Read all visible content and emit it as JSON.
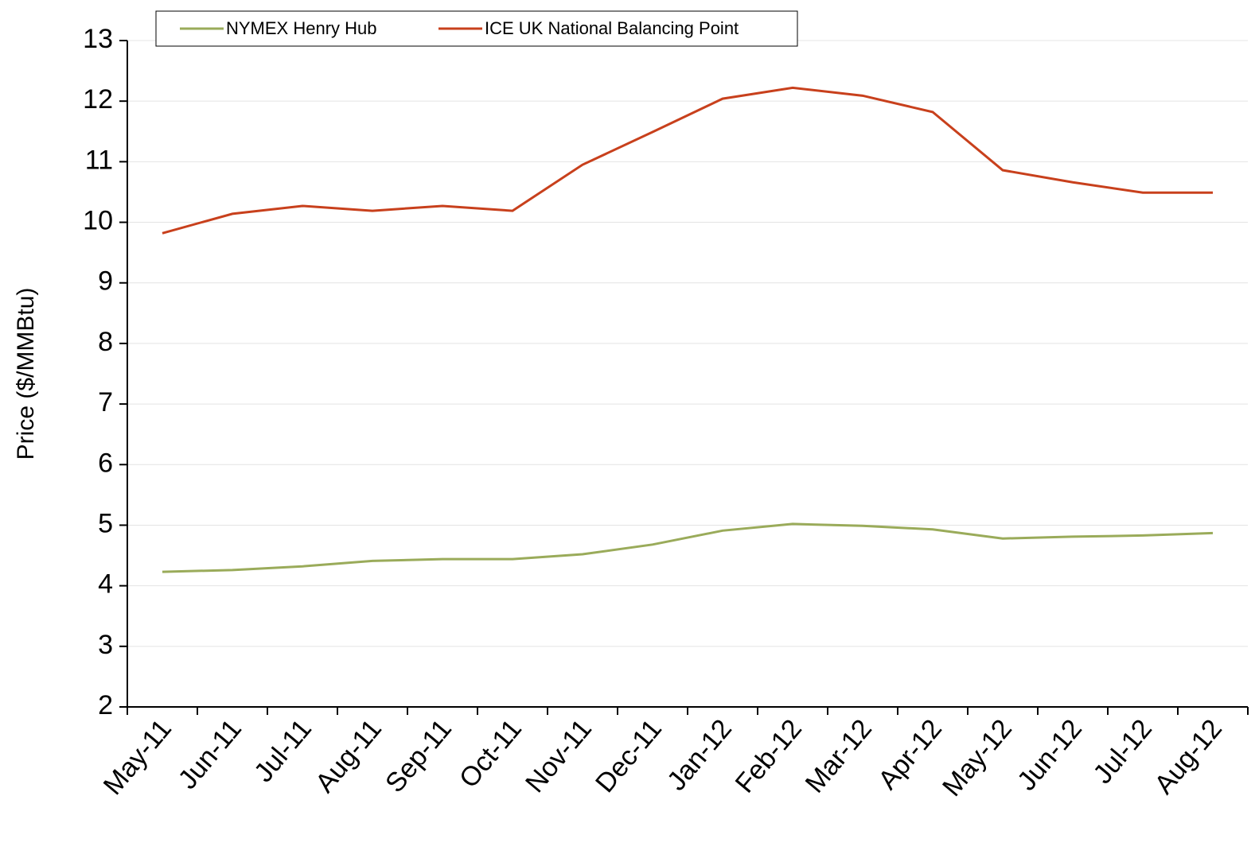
{
  "chart_data": {
    "type": "line",
    "y_label": "Price ($/MMBtu)",
    "categories": [
      "May-11",
      "Jun-11",
      "Jul-11",
      "Aug-11",
      "Sep-11",
      "Oct-11",
      "Nov-11",
      "Dec-11",
      "Jan-12",
      "Feb-12",
      "Mar-12",
      "Apr-12",
      "May-12",
      "Jun-12",
      "Jul-12",
      "Aug-12"
    ],
    "series": [
      {
        "name": "NYMEX Henry Hub",
        "color": "#9aab5a",
        "values": [
          4.23,
          4.26,
          4.32,
          4.41,
          4.44,
          4.44,
          4.52,
          4.68,
          4.91,
          5.02,
          4.99,
          4.93,
          4.78,
          4.81,
          4.83,
          4.87
        ]
      },
      {
        "name": "ICE UK National Balancing Point",
        "color": "#c8401c",
        "values": [
          9.82,
          10.14,
          10.27,
          10.19,
          10.27,
          10.19,
          10.95,
          11.49,
          12.04,
          12.22,
          12.09,
          11.82,
          10.86,
          10.66,
          10.49,
          10.49
        ]
      }
    ],
    "ylim": [
      2,
      13
    ],
    "yticks": [
      2,
      3,
      4,
      5,
      6,
      7,
      8,
      9,
      10,
      11,
      12,
      13
    ],
    "grid": true,
    "legend": "top"
  }
}
